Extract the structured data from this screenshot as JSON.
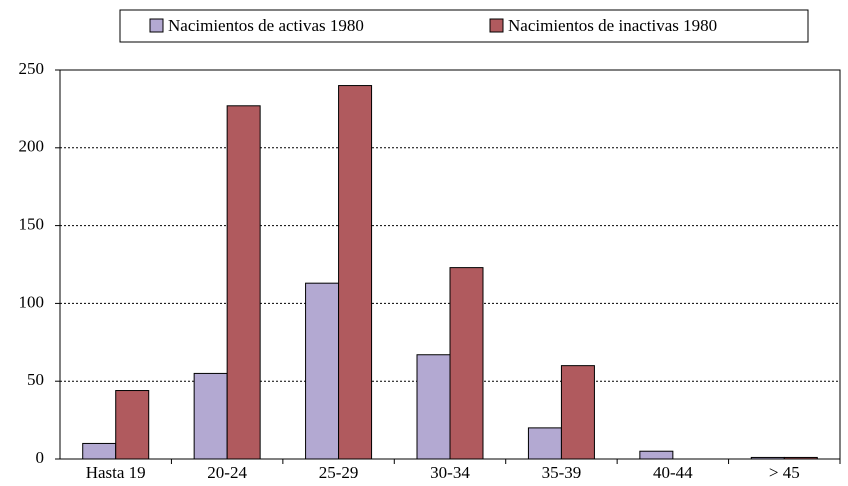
{
  "chart_data": {
    "type": "bar",
    "categories": [
      "Hasta 19",
      "20-24",
      "25-29",
      "30-34",
      "35-39",
      "40-44",
      "> 45"
    ],
    "series": [
      {
        "name": "Nacimientos de activas 1980",
        "color": "#b3a9d2",
        "values": [
          10,
          55,
          113,
          67,
          20,
          5,
          1
        ]
      },
      {
        "name": "Nacimientos de inactivas 1980",
        "color": "#b05a5e",
        "values": [
          44,
          227,
          240,
          123,
          60,
          0,
          1
        ]
      }
    ],
    "ylim": [
      0,
      250
    ],
    "yticks": [
      0,
      50,
      100,
      150,
      200,
      250
    ],
    "grid": true,
    "legend": "top"
  }
}
